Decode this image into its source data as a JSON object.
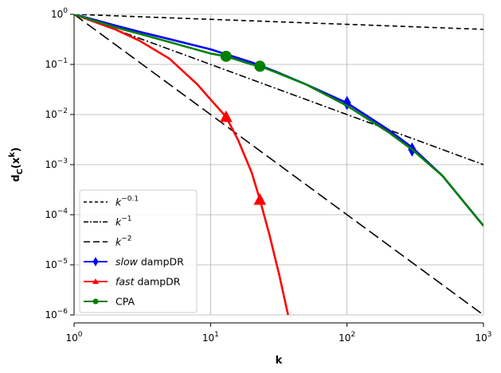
{
  "chart_data": {
    "type": "line",
    "xscale": "log",
    "yscale": "log",
    "xlim": [
      1,
      1000
    ],
    "ylim": [
      1e-06,
      1
    ],
    "xlabel": "k",
    "ylabel": "d_C(x^k)",
    "grid": true,
    "legend_position": "lower-left",
    "x_ticks": [
      {
        "value": 1,
        "base": "10",
        "exp": "0"
      },
      {
        "value": 10,
        "base": "10",
        "exp": "1"
      },
      {
        "value": 100,
        "base": "10",
        "exp": "2"
      },
      {
        "value": 1000,
        "base": "10",
        "exp": "3"
      }
    ],
    "y_ticks": [
      {
        "value": 1,
        "base": "10",
        "exp": "0"
      },
      {
        "value": 0.1,
        "base": "10",
        "exp": "−1"
      },
      {
        "value": 0.01,
        "base": "10",
        "exp": "−2"
      },
      {
        "value": 0.001,
        "base": "10",
        "exp": "−3"
      },
      {
        "value": 0.0001,
        "base": "10",
        "exp": "−4"
      },
      {
        "value": 1e-05,
        "base": "10",
        "exp": "−5"
      },
      {
        "value": 1e-06,
        "base": "10",
        "exp": "−6"
      }
    ],
    "series": [
      {
        "key": "k-0.1",
        "legend_base": "k",
        "legend_exp": "−0.1",
        "legend_suffix": "",
        "legend_italic": "",
        "color": "#000000",
        "dash": "6,4",
        "marker": "none",
        "x": [
          1,
          10,
          100,
          1000
        ],
        "y": [
          1,
          0.794,
          0.631,
          0.501
        ],
        "markers": []
      },
      {
        "key": "k-1",
        "legend_base": "k",
        "legend_exp": "−1",
        "legend_suffix": "",
        "legend_italic": "",
        "color": "#000000",
        "dash": "9,3,2,3",
        "marker": "none",
        "x": [
          1,
          10,
          100,
          1000
        ],
        "y": [
          1,
          0.1,
          0.01,
          0.001
        ],
        "markers": []
      },
      {
        "key": "k-2",
        "legend_base": "k",
        "legend_exp": "−2",
        "legend_suffix": "",
        "legend_italic": "",
        "color": "#000000",
        "dash": "14,6",
        "marker": "none",
        "x": [
          1,
          10,
          100,
          1000
        ],
        "y": [
          1,
          0.01,
          0.0001,
          1e-06
        ],
        "markers": []
      },
      {
        "key": "slow-dampdr",
        "legend_base": "",
        "legend_exp": "",
        "legend_italic": "slow",
        "legend_suffix": " dampDR",
        "color": "#0000ff",
        "dash": "",
        "marker": "diamond",
        "x": [
          1,
          2,
          3,
          5,
          10,
          20,
          30,
          50,
          100,
          200,
          300,
          500,
          1000
        ],
        "y": [
          1,
          0.6,
          0.45,
          0.32,
          0.2,
          0.11,
          0.072,
          0.04,
          0.017,
          0.005,
          0.0022,
          0.0006,
          6e-05
        ],
        "markers": [
          [
            100,
            0.017
          ],
          [
            300,
            0.002
          ]
        ]
      },
      {
        "key": "fast-dampdr",
        "legend_base": "",
        "legend_exp": "",
        "legend_italic": "fast",
        "legend_suffix": " dampDR",
        "color": "#ff0000",
        "dash": "",
        "marker": "triangle",
        "x": [
          1,
          2,
          3,
          5,
          8,
          10,
          13,
          16,
          20,
          23,
          27,
          32,
          37
        ],
        "y": [
          1,
          0.5,
          0.3,
          0.13,
          0.04,
          0.02,
          0.009,
          0.003,
          0.0007,
          0.0002,
          4e-05,
          6e-06,
          1e-06
        ],
        "markers": [
          [
            13,
            0.009
          ],
          [
            23,
            0.0002
          ]
        ]
      },
      {
        "key": "cpa",
        "legend_base": "",
        "legend_exp": "",
        "legend_italic": "",
        "legend_suffix": "CPA",
        "color": "#008000",
        "dash": "",
        "marker": "circle",
        "x": [
          1,
          2,
          3,
          5,
          10,
          13,
          20,
          23,
          30,
          50,
          100,
          200,
          300,
          500,
          1000
        ],
        "y": [
          1,
          0.55,
          0.41,
          0.28,
          0.165,
          0.145,
          0.1,
          0.092,
          0.07,
          0.04,
          0.015,
          0.0045,
          0.002,
          0.0006,
          6e-05
        ],
        "markers": [
          [
            13,
            0.145
          ],
          [
            23,
            0.092
          ]
        ]
      }
    ]
  }
}
